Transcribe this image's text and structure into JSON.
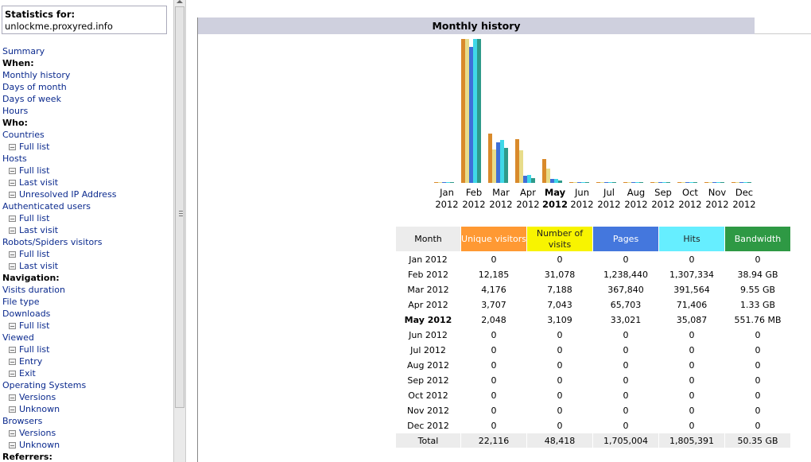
{
  "stats": {
    "label": "Statistics for:",
    "site": "unlockme.proxyred.info"
  },
  "menu": [
    {
      "type": "link",
      "text": "Summary",
      "name": "menu-summary"
    },
    {
      "type": "header",
      "text": "When:",
      "name": "menu-header-when"
    },
    {
      "type": "link",
      "text": "Monthly history",
      "name": "menu-monthly-history"
    },
    {
      "type": "link",
      "text": "Days of month",
      "name": "menu-days-of-month"
    },
    {
      "type": "link",
      "text": "Days of week",
      "name": "menu-days-of-week"
    },
    {
      "type": "link",
      "text": "Hours",
      "name": "menu-hours"
    },
    {
      "type": "header",
      "text": "Who:",
      "name": "menu-header-who"
    },
    {
      "type": "link",
      "text": "Countries",
      "name": "menu-countries"
    },
    {
      "type": "sub",
      "text": "Full list",
      "name": "menu-countries-full-list"
    },
    {
      "type": "link",
      "text": "Hosts",
      "name": "menu-hosts"
    },
    {
      "type": "sub",
      "text": "Full list",
      "name": "menu-hosts-full-list"
    },
    {
      "type": "sub",
      "text": "Last visit",
      "name": "menu-hosts-last-visit"
    },
    {
      "type": "sub",
      "text": "Unresolved IP Address",
      "name": "menu-hosts-unresolved-ip"
    },
    {
      "type": "link",
      "text": "Authenticated users",
      "name": "menu-authenticated-users"
    },
    {
      "type": "sub",
      "text": "Full list",
      "name": "menu-auth-full-list"
    },
    {
      "type": "sub",
      "text": "Last visit",
      "name": "menu-auth-last-visit"
    },
    {
      "type": "link",
      "text": "Robots/Spiders visitors",
      "name": "menu-robots"
    },
    {
      "type": "sub",
      "text": "Full list",
      "name": "menu-robots-full-list"
    },
    {
      "type": "sub",
      "text": "Last visit",
      "name": "menu-robots-last-visit"
    },
    {
      "type": "header",
      "text": "Navigation:",
      "name": "menu-header-navigation"
    },
    {
      "type": "link",
      "text": "Visits duration",
      "name": "menu-visits-duration"
    },
    {
      "type": "link",
      "text": "File type",
      "name": "menu-file-type"
    },
    {
      "type": "link",
      "text": "Downloads",
      "name": "menu-downloads"
    },
    {
      "type": "sub",
      "text": "Full list",
      "name": "menu-downloads-full-list"
    },
    {
      "type": "link",
      "text": "Viewed",
      "name": "menu-viewed"
    },
    {
      "type": "sub",
      "text": "Full list",
      "name": "menu-viewed-full-list"
    },
    {
      "type": "sub",
      "text": "Entry",
      "name": "menu-viewed-entry"
    },
    {
      "type": "sub",
      "text": "Exit",
      "name": "menu-viewed-exit"
    },
    {
      "type": "link",
      "text": "Operating Systems",
      "name": "menu-operating-systems"
    },
    {
      "type": "sub",
      "text": "Versions",
      "name": "menu-os-versions"
    },
    {
      "type": "sub",
      "text": "Unknown",
      "name": "menu-os-unknown"
    },
    {
      "type": "link",
      "text": "Browsers",
      "name": "menu-browsers"
    },
    {
      "type": "sub",
      "text": "Versions",
      "name": "menu-browsers-versions"
    },
    {
      "type": "sub",
      "text": "Unknown",
      "name": "menu-browsers-unknown"
    },
    {
      "type": "header",
      "text": "Referrers:",
      "name": "menu-header-referrers"
    }
  ],
  "main": {
    "title": "Monthly history",
    "columns": {
      "month": "Month",
      "unique": "Unique visitors",
      "visits": "Number of visits",
      "pages": "Pages",
      "hits": "Hits",
      "bandwidth": "Bandwidth"
    },
    "rows": [
      {
        "month": "Jan 2012",
        "unique": "0",
        "visits": "0",
        "pages": "0",
        "hits": "0",
        "bw": "0"
      },
      {
        "month": "Feb 2012",
        "unique": "12,185",
        "visits": "31,078",
        "pages": "1,238,440",
        "hits": "1,307,334",
        "bw": "38.94 GB"
      },
      {
        "month": "Mar 2012",
        "unique": "4,176",
        "visits": "7,188",
        "pages": "367,840",
        "hits": "391,564",
        "bw": "9.55 GB"
      },
      {
        "month": "Apr 2012",
        "unique": "3,707",
        "visits": "7,043",
        "pages": "65,703",
        "hits": "71,406",
        "bw": "1.33 GB"
      },
      {
        "month": "May 2012",
        "unique": "2,048",
        "visits": "3,109",
        "pages": "33,021",
        "hits": "35,087",
        "bw": "551.76 MB",
        "current": true
      },
      {
        "month": "Jun 2012",
        "unique": "0",
        "visits": "0",
        "pages": "0",
        "hits": "0",
        "bw": "0"
      },
      {
        "month": "Jul 2012",
        "unique": "0",
        "visits": "0",
        "pages": "0",
        "hits": "0",
        "bw": "0"
      },
      {
        "month": "Aug 2012",
        "unique": "0",
        "visits": "0",
        "pages": "0",
        "hits": "0",
        "bw": "0"
      },
      {
        "month": "Sep 2012",
        "unique": "0",
        "visits": "0",
        "pages": "0",
        "hits": "0",
        "bw": "0"
      },
      {
        "month": "Oct 2012",
        "unique": "0",
        "visits": "0",
        "pages": "0",
        "hits": "0",
        "bw": "0"
      },
      {
        "month": "Nov 2012",
        "unique": "0",
        "visits": "0",
        "pages": "0",
        "hits": "0",
        "bw": "0"
      },
      {
        "month": "Dec 2012",
        "unique": "0",
        "visits": "0",
        "pages": "0",
        "hits": "0",
        "bw": "0"
      }
    ],
    "total": {
      "month": "Total",
      "unique": "22,116",
      "visits": "48,418",
      "pages": "1,705,004",
      "hits": "1,805,391",
      "bw": "50.35 GB"
    }
  },
  "chart_data": {
    "type": "bar",
    "categories": [
      [
        "Jan",
        "2012"
      ],
      [
        "Feb",
        "2012"
      ],
      [
        "Mar",
        "2012"
      ],
      [
        "Apr",
        "2012"
      ],
      [
        "May",
        "2012"
      ],
      [
        "Jun",
        "2012"
      ],
      [
        "Jul",
        "2012"
      ],
      [
        "Aug",
        "2012"
      ],
      [
        "Sep",
        "2012"
      ],
      [
        "Oct",
        "2012"
      ],
      [
        "Nov",
        "2012"
      ],
      [
        "Dec",
        "2012"
      ]
    ],
    "current_index": 4,
    "colors": [
      "#d98a2b",
      "#e8dc8a",
      "#3f6fd8",
      "#40d8e8",
      "#2e9a8a"
    ],
    "scales": [
      {
        "series": [
          "unique"
        ],
        "max": 12185
      },
      {
        "series": [
          "visits"
        ],
        "max": 31078
      },
      {
        "series": [
          "pages",
          "hits"
        ],
        "max": 1307334
      },
      {
        "series": [
          "bandwidth"
        ],
        "max": 38.94
      }
    ],
    "series": [
      {
        "key": "unique",
        "values": [
          0,
          12185,
          4176,
          3707,
          2048,
          0,
          0,
          0,
          0,
          0,
          0,
          0
        ]
      },
      {
        "key": "visits",
        "values": [
          0,
          31078,
          7188,
          7043,
          3109,
          0,
          0,
          0,
          0,
          0,
          0,
          0
        ]
      },
      {
        "key": "pages",
        "values": [
          0,
          1238440,
          367840,
          65703,
          33021,
          0,
          0,
          0,
          0,
          0,
          0,
          0
        ]
      },
      {
        "key": "hits",
        "values": [
          0,
          1307334,
          391564,
          71406,
          35087,
          0,
          0,
          0,
          0,
          0,
          0,
          0
        ]
      },
      {
        "key": "bandwidth",
        "values": [
          0,
          38.94,
          9.55,
          1.33,
          0.54,
          0,
          0,
          0,
          0,
          0,
          0,
          0
        ]
      }
    ]
  }
}
